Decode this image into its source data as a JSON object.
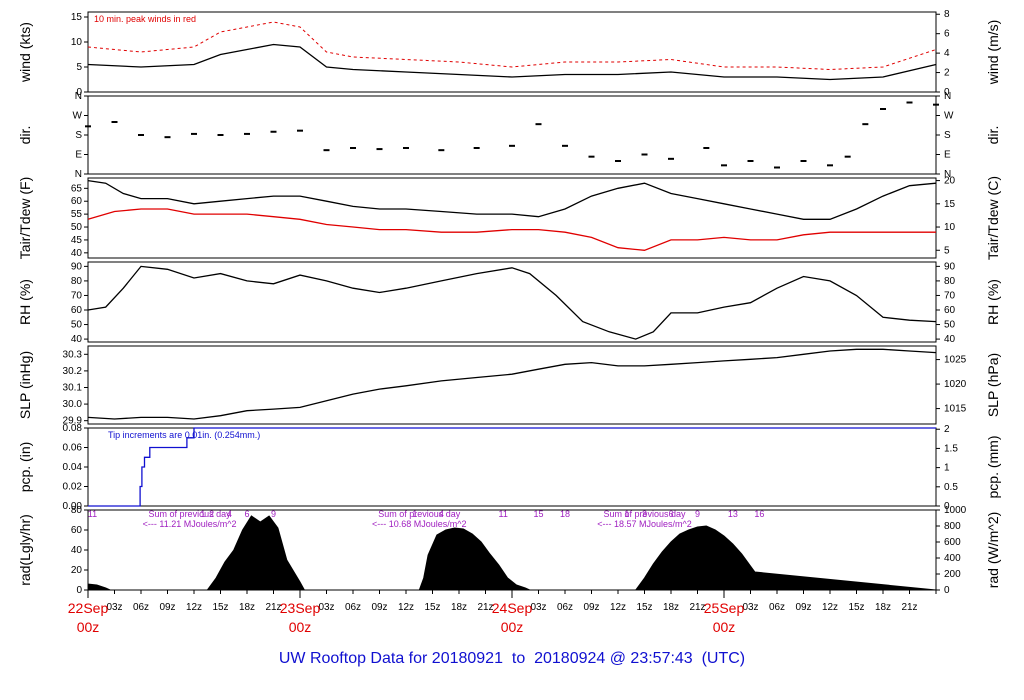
{
  "page_title": "UW Rooftop Data for 20180921  to  20180924 @ 23:57:43  (UTC)",
  "colors": {
    "primary": "#000000",
    "peak": "#e00000",
    "dewpoint": "#e00000",
    "precip": "#1010d0",
    "radiation_note": "#a020c0",
    "date_label": "#e00000"
  },
  "chart_data": [
    {
      "type": "line",
      "name": "wind",
      "left_label": "wind (kts)",
      "right_label": "wind (m/s)",
      "left_ticks": [
        0,
        5,
        10,
        15
      ],
      "right_ticks": [
        0,
        2,
        4,
        6,
        8
      ],
      "ylim": [
        0,
        16
      ],
      "annotation": "10 min. peak winds in red",
      "series": [
        {
          "name": "wind speed",
          "color": "#000000",
          "x": [
            0,
            6,
            12,
            15,
            18,
            21,
            24,
            27,
            30,
            36,
            42,
            48,
            54,
            60,
            66,
            72,
            78,
            84,
            90,
            96
          ],
          "values": [
            5.5,
            5.0,
            5.5,
            7.5,
            8.5,
            9.5,
            9.0,
            5.0,
            4.5,
            4.0,
            3.5,
            3.0,
            3.5,
            3.5,
            4.0,
            3.0,
            3.0,
            2.5,
            3.0,
            5.5
          ]
        },
        {
          "name": "10 min. peak",
          "color": "#e00000",
          "x": [
            0,
            6,
            12,
            15,
            18,
            21,
            24,
            27,
            30,
            36,
            42,
            48,
            54,
            60,
            66,
            72,
            78,
            84,
            90,
            96
          ],
          "values": [
            9,
            8,
            9,
            12,
            13,
            14,
            13,
            8,
            7,
            6.5,
            6,
            5,
            6,
            6,
            6.5,
            5,
            5,
            4.5,
            5,
            8.5
          ]
        }
      ]
    },
    {
      "type": "scatter",
      "name": "direction",
      "left_label": "dir.",
      "right_label": "dir.",
      "left_ticks": [
        "N",
        "E",
        "S",
        "W",
        "N"
      ],
      "right_ticks": [
        "N",
        "E",
        "S",
        "W",
        "N"
      ],
      "ylim": [
        0,
        360
      ],
      "series": [
        {
          "name": "wind direction",
          "color": "#000000",
          "x": [
            0,
            3,
            6,
            9,
            12,
            15,
            18,
            21,
            24,
            27,
            30,
            33,
            36,
            40,
            44,
            48,
            51,
            54,
            57,
            60,
            63,
            66,
            70,
            72,
            75,
            78,
            81,
            84,
            86,
            88,
            90,
            93,
            96
          ],
          "values": [
            220,
            240,
            180,
            170,
            185,
            180,
            185,
            195,
            200,
            110,
            120,
            115,
            120,
            110,
            120,
            130,
            230,
            130,
            80,
            60,
            90,
            70,
            120,
            40,
            60,
            30,
            60,
            40,
            80,
            230,
            300,
            330,
            320
          ]
        }
      ]
    },
    {
      "type": "line",
      "name": "temperature",
      "left_label": "Tair/Tdew (F)",
      "right_label": "Tair/Tdew (C)",
      "left_ticks": [
        40,
        45,
        50,
        55,
        60,
        65
      ],
      "right_ticks": [
        5,
        10,
        15,
        20
      ],
      "ylim": [
        38,
        69
      ],
      "series": [
        {
          "name": "Tair",
          "color": "#000000",
          "x": [
            0,
            2,
            4,
            6,
            9,
            12,
            15,
            18,
            21,
            24,
            27,
            30,
            33,
            36,
            40,
            44,
            48,
            51,
            54,
            57,
            60,
            63,
            66,
            69,
            72,
            75,
            78,
            81,
            84,
            87,
            90,
            93,
            96
          ],
          "values": [
            68,
            67,
            63,
            61,
            61,
            59,
            60,
            61,
            62,
            62,
            60,
            58,
            57,
            57,
            56,
            55,
            55,
            54,
            57,
            62,
            65,
            67,
            63,
            61,
            59,
            57,
            55,
            53,
            53,
            57,
            62,
            66,
            67
          ]
        },
        {
          "name": "Tdew",
          "color": "#e00000",
          "x": [
            0,
            3,
            6,
            9,
            12,
            15,
            18,
            21,
            24,
            27,
            30,
            33,
            36,
            40,
            44,
            48,
            51,
            54,
            57,
            60,
            63,
            66,
            69,
            72,
            75,
            78,
            81,
            84,
            87,
            90,
            93,
            96
          ],
          "values": [
            53,
            56,
            57,
            57,
            55,
            55,
            55,
            54,
            53,
            51,
            50,
            49,
            49,
            48,
            48,
            49,
            49,
            48,
            46,
            42,
            41,
            45,
            45,
            46,
            45,
            45,
            47,
            48,
            48,
            48,
            48,
            48
          ]
        }
      ]
    },
    {
      "type": "line",
      "name": "humidity",
      "left_label": "RH (%)",
      "right_label": "RH (%)",
      "left_ticks": [
        40,
        50,
        60,
        70,
        80,
        90
      ],
      "right_ticks": [
        40,
        50,
        60,
        70,
        80,
        90
      ],
      "ylim": [
        38,
        93
      ],
      "series": [
        {
          "name": "RH",
          "color": "#000000",
          "x": [
            0,
            2,
            4,
            6,
            9,
            12,
            15,
            18,
            21,
            24,
            27,
            30,
            33,
            36,
            40,
            44,
            48,
            50,
            53,
            56,
            59,
            62,
            64,
            66,
            69,
            72,
            75,
            78,
            81,
            84,
            87,
            90,
            93,
            96
          ],
          "values": [
            60,
            62,
            75,
            90,
            88,
            82,
            85,
            80,
            78,
            84,
            80,
            75,
            72,
            75,
            80,
            85,
            89,
            85,
            70,
            52,
            45,
            40,
            45,
            58,
            58,
            62,
            65,
            75,
            83,
            80,
            70,
            55,
            53,
            52
          ]
        }
      ]
    },
    {
      "type": "line",
      "name": "pressure",
      "left_label": "SLP (inHg)",
      "right_label": "SLP (hPa)",
      "left_ticks": [
        "29.9",
        "30.0",
        "30.1",
        "30.2",
        "30.3"
      ],
      "right_ticks": [
        1015,
        1020,
        1025
      ],
      "ylim": [
        29.88,
        30.35
      ],
      "series": [
        {
          "name": "SLP",
          "color": "#000000",
          "x": [
            0,
            3,
            6,
            9,
            12,
            15,
            18,
            21,
            24,
            27,
            30,
            33,
            36,
            40,
            44,
            48,
            51,
            54,
            57,
            60,
            63,
            66,
            69,
            72,
            75,
            78,
            81,
            84,
            87,
            90,
            93,
            96
          ],
          "values": [
            29.92,
            29.91,
            29.92,
            29.92,
            29.91,
            29.93,
            29.96,
            29.97,
            29.98,
            30.02,
            30.06,
            30.09,
            30.11,
            30.14,
            30.16,
            30.18,
            30.21,
            30.24,
            30.25,
            30.23,
            30.23,
            30.24,
            30.25,
            30.26,
            30.27,
            30.28,
            30.3,
            30.32,
            30.33,
            30.33,
            30.32,
            30.31
          ]
        }
      ]
    },
    {
      "type": "line",
      "name": "precipitation",
      "left_label": "pcp. (in)",
      "right_label": "pcp. (mm)",
      "left_ticks": [
        "0.00",
        "0.02",
        "0.04",
        "0.06",
        "0.08"
      ],
      "right_ticks": [
        "0",
        "0.5",
        "1",
        "1.5",
        "2"
      ],
      "ylim": [
        0,
        0.08
      ],
      "annotation": "Tip increments are 0.01in. (0.254mm.)",
      "series": [
        {
          "name": "cumulative precipitation",
          "color": "#1010d0",
          "step": true,
          "x": [
            0,
            5.7,
            5.9,
            6.1,
            6.4,
            7.0,
            10.8,
            11.2,
            12.0,
            96
          ],
          "values": [
            0,
            0,
            0.02,
            0.04,
            0.05,
            0.06,
            0.06,
            0.07,
            0.08,
            0.08
          ]
        }
      ]
    },
    {
      "type": "area",
      "name": "radiation",
      "left_label": "rad(Lgly/hr)",
      "right_label": "rad (W/m^2)",
      "left_ticks": [
        0,
        20,
        40,
        60,
        80
      ],
      "right_ticks": [
        0,
        200,
        400,
        600,
        800,
        1000
      ],
      "ylim": [
        0,
        80
      ],
      "annotations": [
        {
          "x": 11.5,
          "lines": [
            "Sum of previous day",
            "<--- 11.21 MJoules/m^2"
          ]
        },
        {
          "x": 37.5,
          "lines": [
            "Sum of previous day",
            "<--- 10.68 MJoules/m^2"
          ]
        },
        {
          "x": 63.0,
          "lines": [
            "Sum of previous day",
            "<--- 18.57 MJoules/m^2"
          ]
        }
      ],
      "hour_labels": [
        {
          "x": 0.5,
          "text": "11"
        },
        {
          "x": 13,
          "text": "1"
        },
        {
          "x": 14,
          "text": "2"
        },
        {
          "x": 16,
          "text": "4"
        },
        {
          "x": 18,
          "text": "6"
        },
        {
          "x": 21,
          "text": "9"
        },
        {
          "x": 37,
          "text": "1"
        },
        {
          "x": 40,
          "text": "4"
        },
        {
          "x": 47,
          "text": "11"
        },
        {
          "x": 51,
          "text": "15"
        },
        {
          "x": 54,
          "text": "18"
        },
        {
          "x": 61,
          "text": "1"
        },
        {
          "x": 63,
          "text": "3"
        },
        {
          "x": 66,
          "text": "6"
        },
        {
          "x": 69,
          "text": "9"
        },
        {
          "x": 73,
          "text": "13"
        },
        {
          "x": 76,
          "text": "16"
        }
      ],
      "series": [
        {
          "name": "solar radiation",
          "color": "#000000",
          "x": [
            0,
            1,
            2,
            2.5,
            13.5,
            14.5,
            15.5,
            16.5,
            17.5,
            18.5,
            19.5,
            20.5,
            21.5,
            22.5,
            24,
            24.5,
            37.5,
            38,
            38.5,
            39.5,
            40.5,
            41.5,
            42.5,
            43.5,
            44.5,
            45.5,
            46.5,
            47.5,
            48.5,
            49.5,
            50,
            62,
            63,
            64,
            65,
            66,
            67,
            68,
            69,
            70,
            71,
            72,
            73,
            74,
            75,
            75.5,
            96
          ],
          "values": [
            6,
            5,
            2,
            0,
            0,
            12,
            28,
            40,
            60,
            74,
            68,
            74,
            62,
            30,
            8,
            0,
            0,
            12,
            35,
            55,
            60,
            62,
            61,
            56,
            48,
            36,
            25,
            12,
            5,
            2,
            0,
            0,
            12,
            26,
            38,
            48,
            56,
            60,
            63,
            64,
            60,
            54,
            46,
            36,
            24,
            18,
            0
          ]
        }
      ]
    }
  ],
  "time_axis": {
    "hour_ticks": [
      "03z",
      "06z",
      "09z",
      "12z",
      "15z",
      "18z",
      "21z"
    ],
    "dates": [
      {
        "top": "22Sep",
        "bottom": "00z"
      },
      {
        "top": "23Sep",
        "bottom": "00z"
      },
      {
        "top": "24Sep",
        "bottom": "00z"
      },
      {
        "top": "25Sep",
        "bottom": "00z"
      }
    ]
  }
}
